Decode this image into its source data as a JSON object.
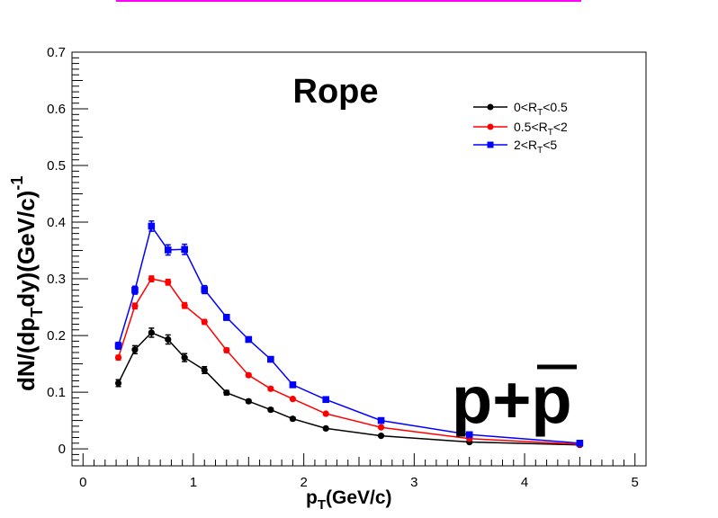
{
  "chart_data": {
    "type": "line",
    "title": "Rope",
    "xlabel": "p_T(GeV/c)",
    "ylabel": "dN/(dp_T dy)(GeV/c)^-1",
    "annotation": "p+p̄",
    "xlim": [
      -0.1,
      5.1
    ],
    "ylim": [
      -0.03,
      0.7
    ],
    "xticks": [
      "0",
      "1",
      "2",
      "3",
      "4",
      "5"
    ],
    "yticks": [
      "0",
      "0.1",
      "0.2",
      "0.3",
      "0.4",
      "0.5",
      "0.6",
      "0.7"
    ],
    "grid": false,
    "legend_position": "top-right",
    "x": [
      0.32,
      0.47,
      0.62,
      0.77,
      0.92,
      1.1,
      1.3,
      1.5,
      1.7,
      1.9,
      2.2,
      2.7,
      3.5,
      4.5
    ],
    "series": [
      {
        "name": "0<R_T<0.5",
        "color": "#000000",
        "marker": "circle",
        "values": [
          0.116,
          0.175,
          0.205,
          0.193,
          0.161,
          0.139,
          0.099,
          0.084,
          0.069,
          0.053,
          0.036,
          0.023,
          0.012,
          0.007
        ],
        "errors": [
          0.006,
          0.007,
          0.008,
          0.008,
          0.007,
          0.006,
          0.004,
          0.003,
          0.003,
          0.003,
          0.002,
          0.002,
          0.001,
          0.001
        ]
      },
      {
        "name": "0.5<R_T<2",
        "color": "#ff0000",
        "marker": "circle",
        "values": [
          0.161,
          0.252,
          0.3,
          0.294,
          0.253,
          0.224,
          0.174,
          0.13,
          0.106,
          0.088,
          0.062,
          0.038,
          0.018,
          0.008
        ],
        "errors": [
          0.004,
          0.005,
          0.005,
          0.005,
          0.005,
          0.004,
          0.004,
          0.003,
          0.003,
          0.002,
          0.002,
          0.001,
          0.001,
          0.001
        ]
      },
      {
        "name": "2<R_T<5",
        "color": "#0000ff",
        "marker": "square",
        "values": [
          0.182,
          0.28,
          0.393,
          0.351,
          0.352,
          0.281,
          0.232,
          0.193,
          0.158,
          0.113,
          0.087,
          0.05,
          0.025,
          0.01
        ],
        "errors": [
          0.006,
          0.007,
          0.009,
          0.009,
          0.009,
          0.007,
          0.005,
          0.004,
          0.004,
          0.003,
          0.003,
          0.002,
          0.001,
          0.001
        ]
      }
    ]
  },
  "colors": {
    "top_bar": "#ff00ff",
    "axis": "#000000"
  }
}
